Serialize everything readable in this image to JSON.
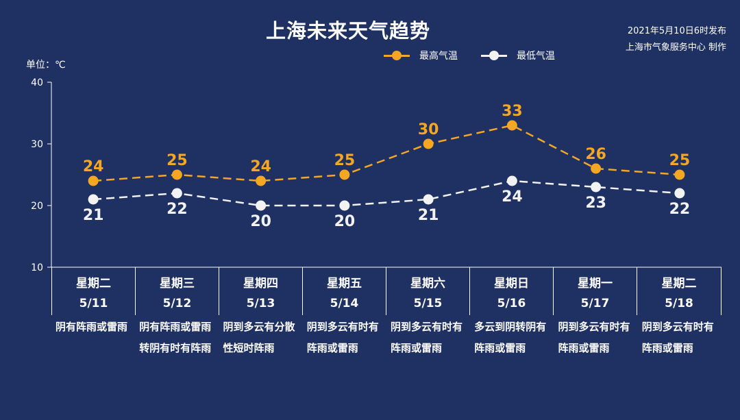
{
  "header": {
    "title": "上海未来天气趋势",
    "publish_line1": "2021年5月10日6时发布",
    "publish_line2": "上海市气象服务中心 制作",
    "unit": "单位：℃"
  },
  "colors": {
    "background": "#1f3162",
    "high": "#f5a623",
    "low": "#f2f2f2",
    "axis": "#ffffff"
  },
  "chart_data": {
    "type": "line",
    "title": "上海未来天气趋势",
    "ylabel": "单位：℃",
    "ylim": [
      10,
      40
    ],
    "yticks": [
      10,
      20,
      30,
      40
    ],
    "grid": false,
    "legend_position": "top-right",
    "categories": [
      "5/11",
      "5/12",
      "5/13",
      "5/14",
      "5/15",
      "5/16",
      "5/17",
      "5/18"
    ],
    "series": [
      {
        "name": "最高气温",
        "values": [
          24,
          25,
          24,
          25,
          30,
          33,
          26,
          25
        ],
        "color": "#f5a623",
        "label_position": "above"
      },
      {
        "name": "最低气温",
        "values": [
          21,
          22,
          20,
          20,
          21,
          24,
          23,
          22
        ],
        "color": "#f2f2f2",
        "label_position": "below"
      }
    ]
  },
  "days": [
    {
      "weekday": "星期二",
      "date": "5/11",
      "weather": "阴有阵雨或雷雨"
    },
    {
      "weekday": "星期三",
      "date": "5/12",
      "weather": "阴有阵雨或雷雨转阴有时有阵雨"
    },
    {
      "weekday": "星期四",
      "date": "5/13",
      "weather": "阴到多云有分散性短时阵雨"
    },
    {
      "weekday": "星期五",
      "date": "5/14",
      "weather": "阴到多云有时有阵雨或雷雨"
    },
    {
      "weekday": "星期六",
      "date": "5/15",
      "weather": "阴到多云有时有阵雨或雷雨"
    },
    {
      "weekday": "星期日",
      "date": "5/16",
      "weather": "多云到阴转阴有阵雨或雷雨"
    },
    {
      "weekday": "星期一",
      "date": "5/17",
      "weather": "阴到多云有时有阵雨或雷雨"
    },
    {
      "weekday": "星期二",
      "date": "5/18",
      "weather": "阴到多云有时有阵雨或雷雨"
    }
  ]
}
